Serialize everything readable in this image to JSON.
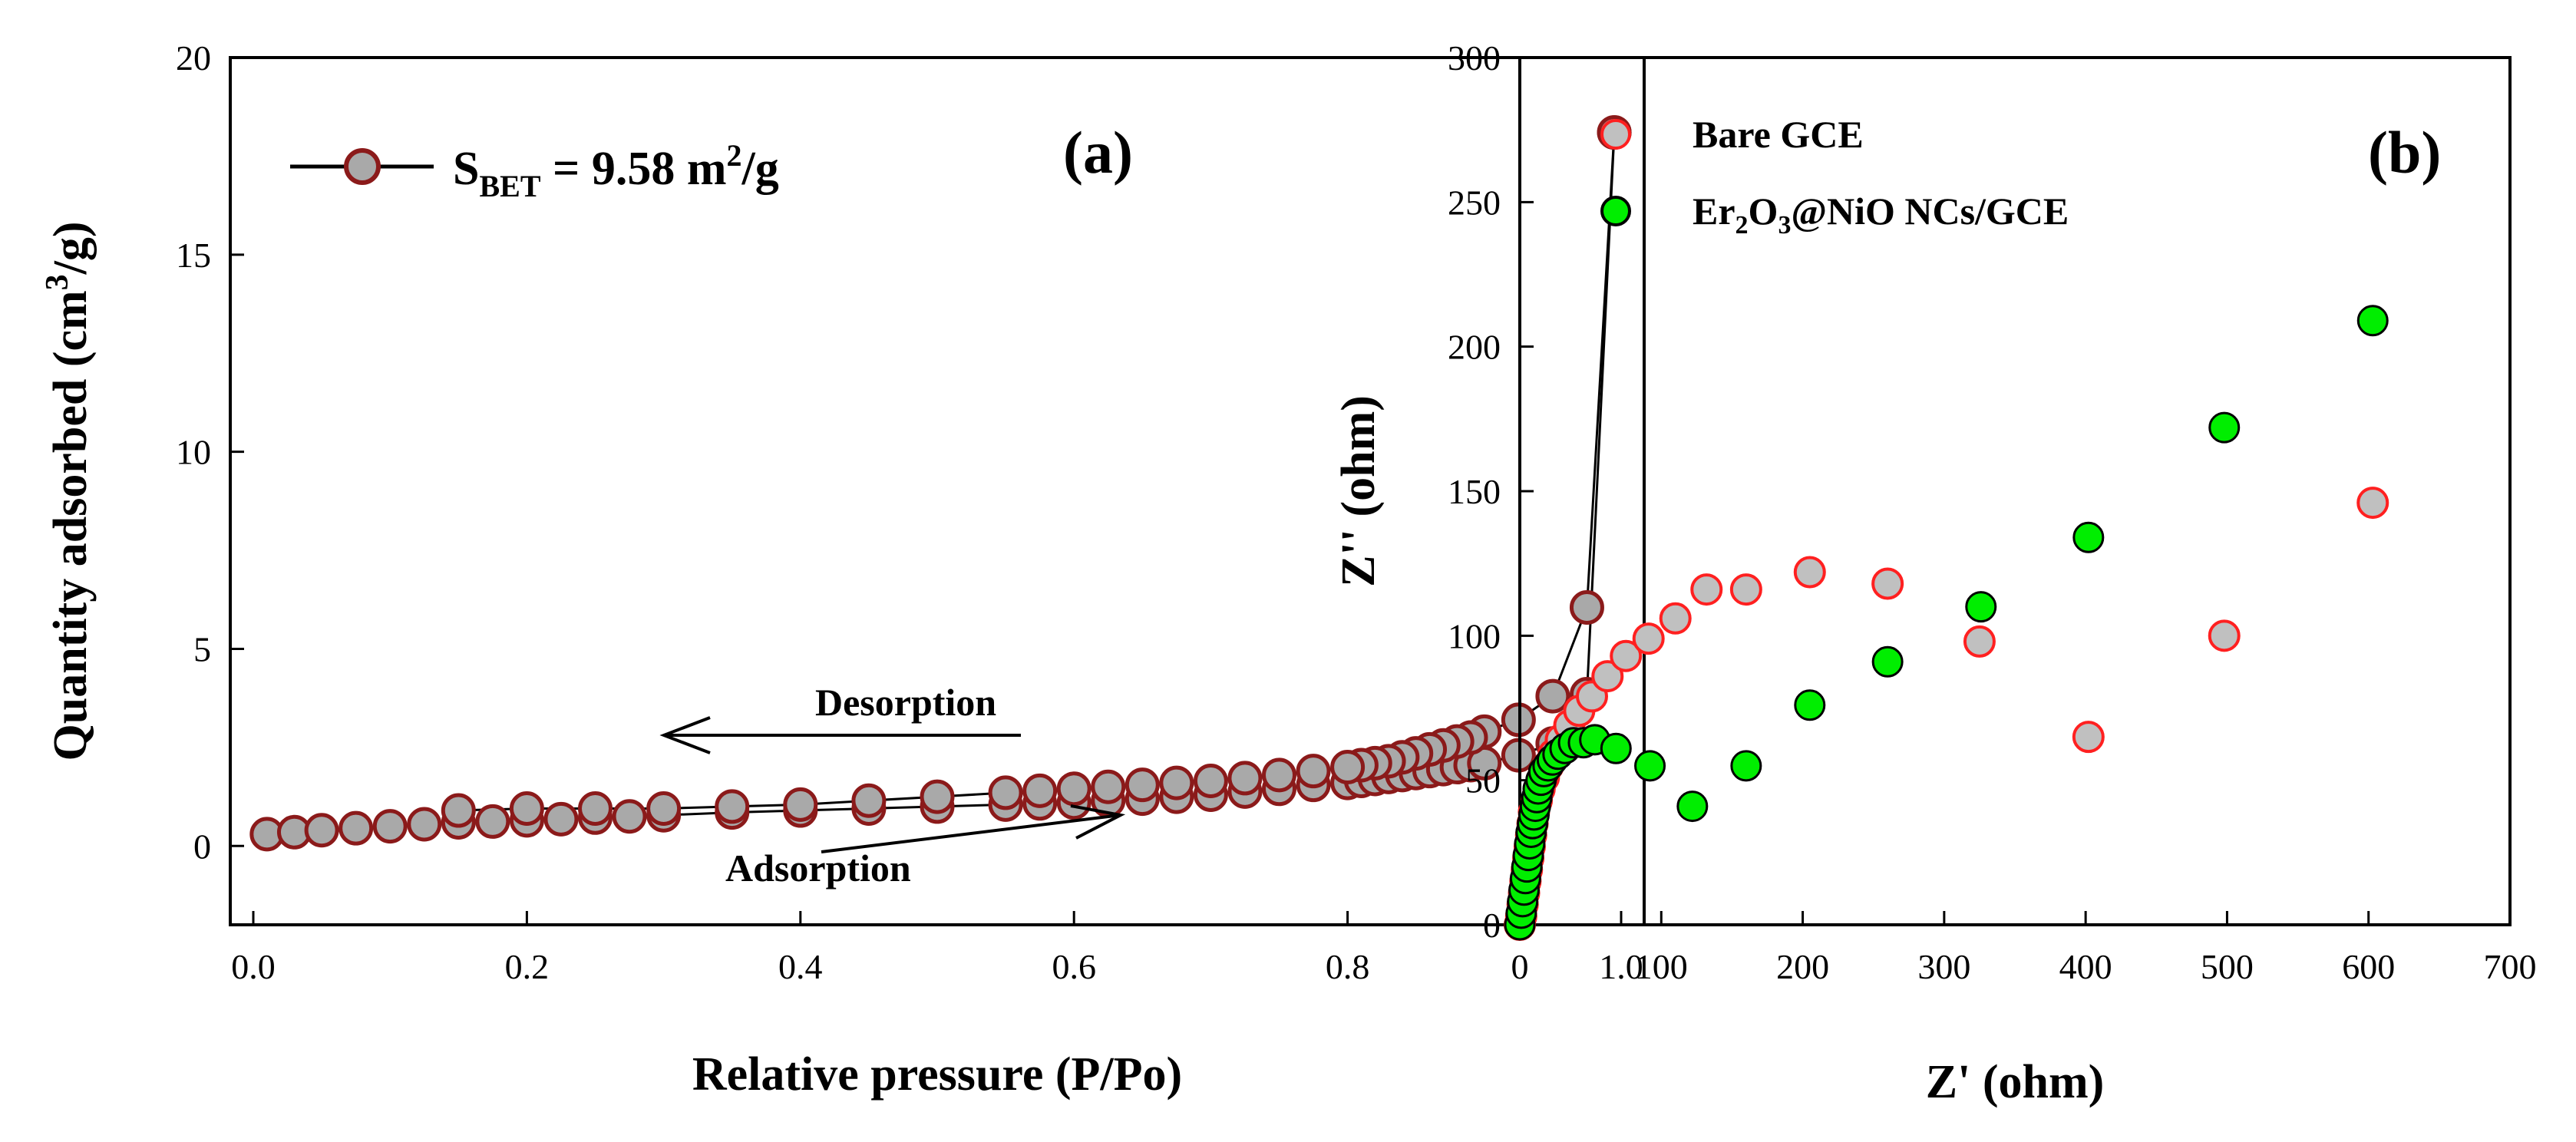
{
  "chart_data": [
    {
      "panel": "(a)",
      "type": "line",
      "xlabel": "Relative pressure (P/Po)",
      "ylabel": "Quantity adsorbed (cm3/g)",
      "ylabel_parts": {
        "main": "Quantity adsorbed (cm",
        "sup": "3",
        "end": "/g)"
      },
      "xlim": [
        0.0,
        1.0
      ],
      "ylim": [
        -2,
        20
      ],
      "xticks": [
        "0.0",
        "0.2",
        "0.4",
        "0.6",
        "0.8",
        "1.0"
      ],
      "yticks": [
        "0",
        "5",
        "10",
        "15",
        "20"
      ],
      "legend": {
        "label": "SBET = 9.58 m2/g",
        "parts": {
          "s": "S",
          "sub": "BET",
          "mid": " = 9.58 m",
          "sup": "2",
          "end": "/g"
        },
        "placement": "top-left"
      },
      "annotations": {
        "desorption": "Desorption",
        "adsorption": "Adsorption"
      },
      "marker_color": "#a9a9a9",
      "marker_edge": "#8b1a1a",
      "series": [
        {
          "name": "Adsorption",
          "x": [
            0.01,
            0.03,
            0.05,
            0.075,
            0.1,
            0.125,
            0.15,
            0.175,
            0.2,
            0.225,
            0.25,
            0.275,
            0.3,
            0.35,
            0.4,
            0.45,
            0.5,
            0.55,
            0.575,
            0.6,
            0.625,
            0.65,
            0.675,
            0.7,
            0.725,
            0.75,
            0.775,
            0.8,
            0.81,
            0.82,
            0.83,
            0.84,
            0.85,
            0.86,
            0.87,
            0.88,
            0.89,
            0.9,
            0.925,
            0.95,
            0.975,
            0.995
          ],
          "y": [
            0.3,
            0.35,
            0.4,
            0.45,
            0.5,
            0.55,
            0.6,
            0.62,
            0.65,
            0.68,
            0.72,
            0.75,
            0.78,
            0.85,
            0.9,
            0.95,
            1.0,
            1.05,
            1.08,
            1.1,
            1.15,
            1.2,
            1.25,
            1.3,
            1.38,
            1.45,
            1.55,
            1.6,
            1.65,
            1.7,
            1.75,
            1.8,
            1.85,
            1.9,
            1.95,
            2.0,
            2.05,
            2.1,
            2.3,
            2.6,
            3.85,
            18.1
          ]
        },
        {
          "name": "Desorption",
          "x": [
            0.995,
            0.975,
            0.95,
            0.925,
            0.9,
            0.89,
            0.88,
            0.87,
            0.86,
            0.85,
            0.84,
            0.83,
            0.82,
            0.81,
            0.8,
            0.775,
            0.75,
            0.725,
            0.7,
            0.675,
            0.65,
            0.625,
            0.6,
            0.575,
            0.55,
            0.5,
            0.45,
            0.4,
            0.35,
            0.3,
            0.25,
            0.2,
            0.15
          ],
          "y": [
            18.1,
            6.05,
            3.8,
            3.2,
            2.9,
            2.75,
            2.65,
            2.55,
            2.45,
            2.35,
            2.25,
            2.15,
            2.1,
            2.05,
            2.0,
            1.9,
            1.8,
            1.72,
            1.65,
            1.6,
            1.55,
            1.5,
            1.45,
            1.4,
            1.35,
            1.25,
            1.15,
            1.05,
            1.0,
            0.95,
            0.95,
            0.95,
            0.9
          ]
        }
      ]
    },
    {
      "panel": "(b)",
      "type": "scatter",
      "xlabel": "Z' (ohm)",
      "ylabel": "Z'' (ohm)",
      "xlim": [
        0,
        700
      ],
      "ylim": [
        0,
        300
      ],
      "xticks": [
        "0",
        "100",
        "200",
        "300",
        "400",
        "500",
        "600",
        "700"
      ],
      "yticks": [
        "0",
        "50",
        "100",
        "150",
        "200",
        "250",
        "300"
      ],
      "series": [
        {
          "name": "Bare GCE",
          "legend_parts": {
            "text": "Bare GCE"
          },
          "fill": "#c0c0c0",
          "edge": "#ff2020",
          "x": [
            0,
            1,
            2,
            3,
            4,
            5,
            6,
            7,
            8,
            9,
            10,
            12,
            14,
            17,
            20,
            24,
            29,
            35,
            42,
            51,
            62,
            75,
            91,
            110,
            132,
            160,
            205,
            260,
            325,
            402,
            498,
            603
          ],
          "y": [
            0,
            3,
            7,
            11,
            15,
            19,
            23,
            27,
            31,
            35,
            39,
            43,
            47,
            51,
            55,
            59,
            64,
            69,
            74,
            79,
            86,
            93,
            99,
            106,
            116,
            116,
            122,
            118,
            98,
            65,
            100,
            146
          ]
        },
        {
          "name": "Er2O3@NiO NCs/GCE",
          "legend_parts": {
            "a": "Er",
            "s1": "2",
            "b": "O",
            "s2": "3",
            "c": "@NiO NCs/GCE"
          },
          "fill": "#00ee00",
          "edge": "#000000",
          "x": [
            0,
            1,
            2,
            3,
            4,
            5,
            6,
            7,
            8,
            9,
            10,
            11,
            12,
            13,
            15,
            17,
            20,
            23,
            27,
            32,
            38,
            45,
            53,
            68,
            92,
            122,
            160,
            205,
            260,
            326,
            402,
            498,
            603
          ],
          "y": [
            0,
            4,
            8,
            12,
            16,
            20,
            24,
            28,
            32,
            35,
            38,
            41,
            44,
            47,
            50,
            53,
            55,
            57,
            59,
            61,
            63,
            63,
            64,
            61,
            55,
            41,
            55,
            76,
            91,
            110,
            134,
            172,
            209
          ]
        }
      ],
      "panel_letter": "(b)"
    }
  ]
}
